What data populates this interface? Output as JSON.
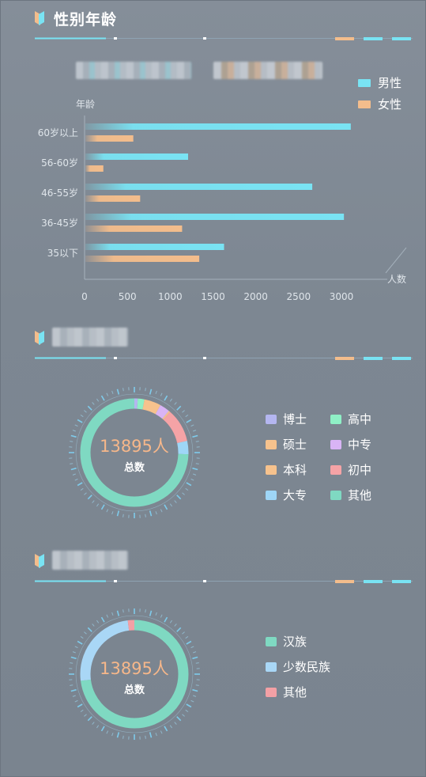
{
  "section1": {
    "title": "性别年龄"
  },
  "colors": {
    "male": "#79e3f3",
    "female": "#f3bd8c",
    "accent": "#6ad6ee"
  },
  "chart_data": [
    {
      "type": "bar",
      "orientation": "horizontal",
      "ylabel": "年龄",
      "xlabel": "人数",
      "categories": [
        "60岁以上",
        "56-60岁",
        "46-55岁",
        "36-45岁",
        "35以下"
      ],
      "series": [
        {
          "name": "男性",
          "values": [
            3100,
            1200,
            2650,
            3020,
            1620
          ]
        },
        {
          "name": "女性",
          "values": [
            560,
            210,
            640,
            1130,
            1330
          ]
        }
      ],
      "xticks": [
        0,
        500,
        1000,
        1500,
        2000,
        2500,
        3000
      ],
      "xlim": [
        0,
        3000
      ],
      "legend": "top-right",
      "grid": false
    },
    {
      "type": "pie",
      "variant": "donut",
      "total_label": "13895人",
      "center_label": "总数",
      "legend": "right",
      "slices": [
        {
          "name": "博士",
          "value": 1,
          "color": "#b4b6f0"
        },
        {
          "name": "高中",
          "value": 2,
          "color": "#8ff0c6"
        },
        {
          "name": "硕士",
          "value": 5,
          "color": "#f6c28d"
        },
        {
          "name": "中专",
          "value": 3,
          "color": "#d9b4f5"
        },
        {
          "name": "本科",
          "value": 0.5,
          "color": "#f6c28d"
        },
        {
          "name": "初中",
          "value": 10,
          "color": "#f5a3a6"
        },
        {
          "name": "大专",
          "value": 4,
          "color": "#9ed6f7"
        },
        {
          "name": "其他",
          "value": 74.5,
          "color": "#7fd9c2"
        }
      ]
    },
    {
      "type": "pie",
      "variant": "donut",
      "total_label": "13895人",
      "center_label": "总数",
      "legend": "right",
      "slices": [
        {
          "name": "汉族",
          "value": 73,
          "color": "#7fd9c2"
        },
        {
          "name": "少数民族",
          "value": 25,
          "color": "#a9d7f6"
        },
        {
          "name": "其他",
          "value": 2,
          "color": "#f3a0a5"
        }
      ]
    }
  ]
}
